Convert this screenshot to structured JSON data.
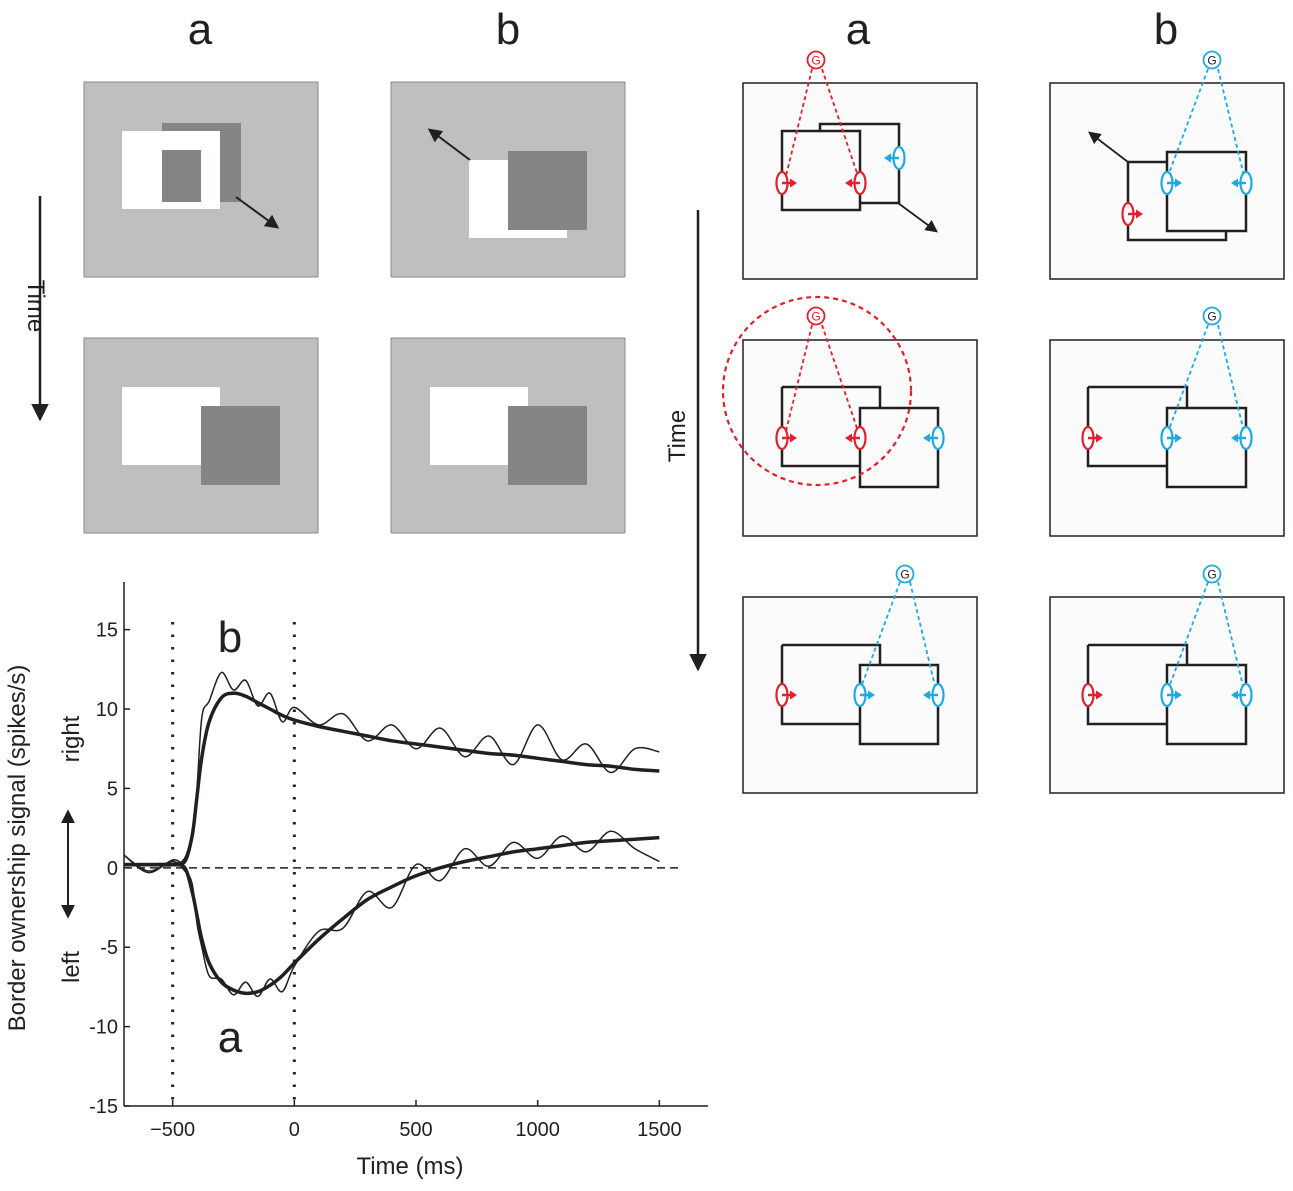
{
  "stimulus_panels": {
    "col_labels": [
      "a",
      "b"
    ],
    "time_label": "Time"
  },
  "model_panels": {
    "col_labels": [
      "a",
      "b"
    ],
    "time_label": "Time",
    "g_label": "G",
    "colors": {
      "left_unit": "#e11f2d",
      "right_unit": "#1fa9e1",
      "frame": "#231f20"
    }
  },
  "chart_data": {
    "type": "line",
    "title": "",
    "xlabel": "Time (ms)",
    "ylabel": "Border ownership signal  (spikes/s)",
    "direction_labels": {
      "up": "right",
      "down": "left"
    },
    "xlim": [
      -700,
      1700
    ],
    "ylim": [
      -15,
      18
    ],
    "xticks": [
      -500,
      0,
      500,
      1000,
      1500
    ],
    "yticks": [
      15,
      10,
      5,
      0,
      -5,
      -10,
      -15
    ],
    "vlines": [
      -500,
      0
    ],
    "hline": 0,
    "series": [
      {
        "name": "b",
        "label": "b",
        "x": [
          -700,
          -600,
          -500,
          -450,
          -420,
          -400,
          -380,
          -350,
          -300,
          -250,
          -200,
          -150,
          -100,
          -50,
          0,
          100,
          200,
          300,
          400,
          500,
          600,
          700,
          800,
          900,
          1000,
          1100,
          1200,
          1300,
          1400,
          1500
        ],
        "fit": [
          0.2,
          0.2,
          0.2,
          0.5,
          2.0,
          4.5,
          7.0,
          9.2,
          10.7,
          11.0,
          10.8,
          10.4,
          10.0,
          9.6,
          9.3,
          8.9,
          8.6,
          8.3,
          8.0,
          7.8,
          7.6,
          7.4,
          7.2,
          7.1,
          6.9,
          6.7,
          6.5,
          6.4,
          6.2,
          6.1
        ],
        "raw": [
          0.8,
          -0.3,
          0.5,
          0.3,
          1.8,
          5.0,
          9.5,
          10.5,
          12.3,
          11.2,
          11.8,
          10.2,
          11.0,
          9.2,
          10.1,
          9.0,
          9.7,
          8.0,
          9.0,
          7.5,
          8.8,
          7.0,
          8.3,
          6.5,
          9.0,
          6.8,
          7.8,
          6.0,
          7.5,
          7.3
        ]
      },
      {
        "name": "a",
        "label": "a",
        "x": [
          -700,
          -600,
          -500,
          -450,
          -420,
          -400,
          -380,
          -350,
          -300,
          -250,
          -200,
          -150,
          -100,
          -50,
          0,
          100,
          200,
          300,
          400,
          500,
          600,
          700,
          800,
          900,
          1000,
          1100,
          1200,
          1300,
          1400,
          1500
        ],
        "fit": [
          0.2,
          0.2,
          0.2,
          0.0,
          -1.5,
          -3.0,
          -4.5,
          -6.0,
          -7.2,
          -7.7,
          -7.9,
          -7.8,
          -7.4,
          -6.8,
          -6.0,
          -4.5,
          -3.2,
          -2.0,
          -1.2,
          -0.5,
          0.0,
          0.4,
          0.7,
          1.0,
          1.2,
          1.4,
          1.6,
          1.7,
          1.8,
          1.9
        ],
        "raw": [
          0.8,
          -0.2,
          0.4,
          -0.2,
          -1.0,
          -3.5,
          -5.0,
          -6.8,
          -7.0,
          -8.0,
          -7.2,
          -8.1,
          -7.0,
          -7.8,
          -6.2,
          -4.0,
          -3.8,
          -1.5,
          -2.5,
          0.2,
          -0.8,
          1.2,
          0.1,
          1.6,
          0.6,
          2.0,
          1.0,
          2.3,
          1.2,
          0.4
        ]
      }
    ]
  }
}
